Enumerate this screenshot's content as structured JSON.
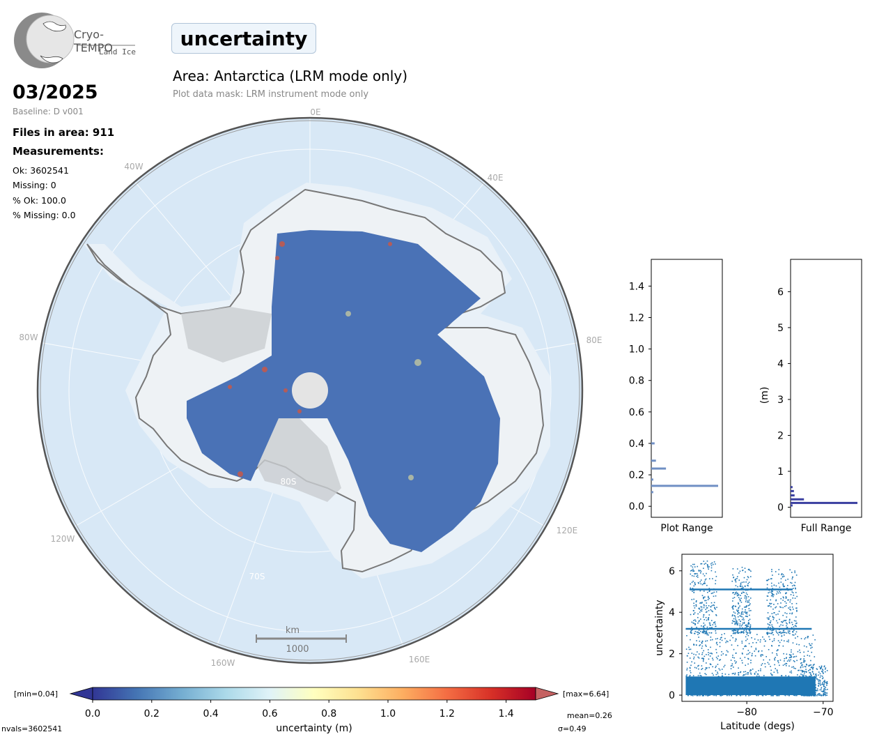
{
  "logo": {
    "brand": "Cryo-TEMPO",
    "sub": "Land Ice"
  },
  "header": {
    "parameter": "uncertainty",
    "area_title": "Area: Antarctica (LRM mode only)",
    "mask_note": "Plot data mask: LRM instrument mode only"
  },
  "info": {
    "date": "03/2025",
    "baseline": "Baseline: D v001",
    "files": "Files in area: 911",
    "measurements_heading": "Measurements:",
    "ok": "Ok: 3602541",
    "missing": "Missing: 0",
    "pct_ok": "% Ok: 100.0",
    "pct_missing": "% Missing: 0.0"
  },
  "map": {
    "lon_labels": {
      "0E": "0E",
      "40E": "40E",
      "80E": "80E",
      "120E": "120E",
      "160E": "160E",
      "160W": "160W",
      "120W": "120W",
      "80W": "80W",
      "40W": "40W"
    },
    "lat_labels": {
      "80S": "80S",
      "70S": "70S"
    },
    "scalebar_unit": "km",
    "scalebar_value": "1000",
    "colors": {
      "ocean": "#d8e8f6",
      "ice": "#eef2f5",
      "data": "#4a72b6",
      "coast": "#777777"
    }
  },
  "colorbar": {
    "min_label": "[min=0.04]",
    "max_label": "[max=6.64]",
    "ticks": [
      "0.0",
      "0.2",
      "0.4",
      "0.6",
      "0.8",
      "1.0",
      "1.2",
      "1.4"
    ],
    "label": "uncertainty (m)",
    "nvals": "nvals=3602541",
    "mean": "mean=0.26",
    "sigma": "σ=0.49",
    "colormap": [
      "#313695",
      "#4575b4",
      "#74add1",
      "#abd9e9",
      "#e0f3f8",
      "#ffffbf",
      "#fee090",
      "#fdae61",
      "#f46d43",
      "#d73027",
      "#a50026"
    ]
  },
  "chart_data": [
    {
      "type": "bar",
      "orientation": "horizontal",
      "xlabel": "Plot Range",
      "ylim": [
        -0.07,
        1.57
      ],
      "yticks": [
        "0.0",
        "0.2",
        "0.4",
        "0.6",
        "0.8",
        "1.0",
        "1.2",
        "1.4"
      ],
      "bins": [
        {
          "y": 0.13,
          "relative_count": 1.0
        },
        {
          "y": 0.24,
          "relative_count": 0.22
        },
        {
          "y": 0.29,
          "relative_count": 0.07
        },
        {
          "y": 0.4,
          "relative_count": 0.05
        },
        {
          "y": 0.17,
          "relative_count": 0.03
        },
        {
          "y": 0.09,
          "relative_count": 0.03
        }
      ],
      "color": "#6f8fc4"
    },
    {
      "type": "bar",
      "orientation": "horizontal",
      "xlabel": "Full Range",
      "ylabel": "(m)",
      "ylim": [
        -0.28,
        6.9
      ],
      "yticks": [
        "0",
        "1",
        "2",
        "3",
        "4",
        "5",
        "6"
      ],
      "bins": [
        {
          "y": 0.12,
          "relative_count": 1.0
        },
        {
          "y": 0.22,
          "relative_count": 0.2
        },
        {
          "y": 0.33,
          "relative_count": 0.06
        },
        {
          "y": 0.45,
          "relative_count": 0.05
        },
        {
          "y": 0.56,
          "relative_count": 0.03
        },
        {
          "y": 0.05,
          "relative_count": 0.03
        }
      ],
      "color": "#3a3fa0"
    },
    {
      "type": "scatter",
      "xlabel": "Latitude (degs)",
      "ylabel": "uncertainty",
      "xlim": [
        -88.5,
        -68.7
      ],
      "ylim": [
        -0.3,
        6.8
      ],
      "xticks": [
        "−80",
        "−70"
      ],
      "xtick_values": [
        -80,
        -70
      ],
      "yticks": [
        "0",
        "2",
        "4",
        "6"
      ],
      "ytick_values": [
        0,
        2,
        4,
        6
      ],
      "color": "#1f77b4",
      "bands": [
        {
          "y": 3.2,
          "x_range": [
            -88,
            -71.5
          ]
        },
        {
          "y": 5.1,
          "x_range": [
            -87.5,
            -74
          ]
        }
      ],
      "clusters": [
        {
          "x_range": [
            -88,
            -71
          ],
          "y_range": [
            0,
            3.0
          ],
          "density": "high"
        },
        {
          "x_range": [
            -87.5,
            -84
          ],
          "y_range": [
            3.0,
            6.5
          ],
          "density": "medium"
        },
        {
          "x_range": [
            -82,
            -79.5
          ],
          "y_range": [
            3.0,
            6.2
          ],
          "density": "medium"
        },
        {
          "x_range": [
            -77.5,
            -73.5
          ],
          "y_range": [
            3.0,
            6.1
          ],
          "density": "medium"
        },
        {
          "x_range": [
            -73,
            -69.5
          ],
          "y_range": [
            0,
            1.5
          ],
          "density": "medium"
        }
      ]
    }
  ]
}
